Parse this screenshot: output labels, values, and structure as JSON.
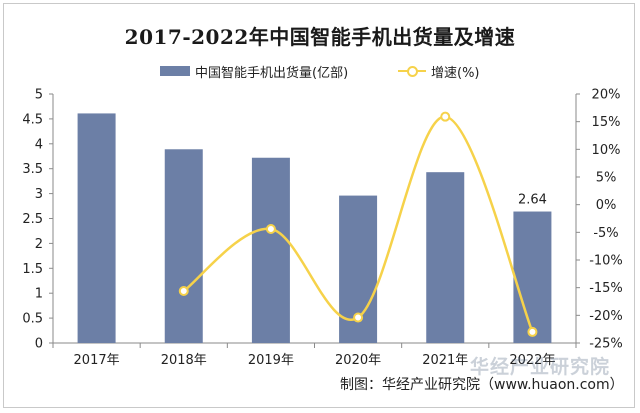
{
  "chart_data": {
    "type": "bar",
    "title": "2017-2022年中国智能手机出货量及增速",
    "categories": [
      "2017年",
      "2018年",
      "2019年",
      "2020年",
      "2021年",
      "2022年"
    ],
    "series": [
      {
        "name": "中国智能手机出货量(亿部)",
        "type": "bar",
        "axis": "left",
        "values": [
          4.61,
          3.89,
          3.72,
          2.96,
          3.43,
          2.64
        ],
        "color": "#6c7fa6"
      },
      {
        "name": "增速(%)",
        "type": "line",
        "axis": "right",
        "smooth": true,
        "values": [
          null,
          -15.6,
          -4.4,
          -20.4,
          15.9,
          -23.0
        ],
        "color": "#f6d24a"
      }
    ],
    "data_labels": [
      {
        "series": 0,
        "index": 5,
        "text": "2.64"
      }
    ],
    "yaxis_left": {
      "range": [
        0,
        5
      ],
      "ticks": [
        "0",
        "0.5",
        "1",
        "1.5",
        "2",
        "2.5",
        "3",
        "3.5",
        "4",
        "4.5",
        "5"
      ]
    },
    "yaxis_right": {
      "range": [
        -25,
        20
      ],
      "ticks": [
        "-25%",
        "-20%",
        "-15%",
        "-10%",
        "-5%",
        "0%",
        "5%",
        "10%",
        "15%",
        "20%"
      ]
    },
    "legend_position": "top-center",
    "grid": false
  },
  "credit": "制图：华经产业研究院（www.huaon.com）",
  "watermark": "华经产业研究院"
}
